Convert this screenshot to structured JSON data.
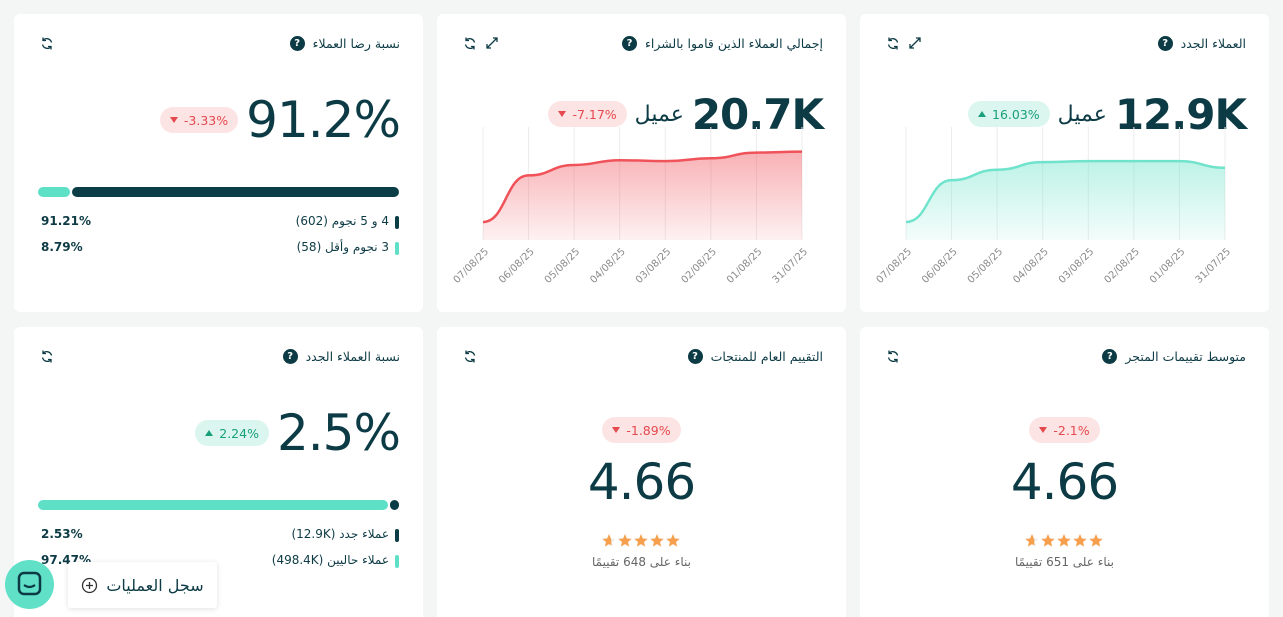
{
  "cards": [
    {
      "title": "العملاء الجدد",
      "value": "12.9K",
      "unit": "عميل",
      "change": {
        "label": "16.03%",
        "direction": "up"
      },
      "chart": {
        "type": "area",
        "x": [
          "07/08/25",
          "06/08/25",
          "05/08/25",
          "04/08/25",
          "03/08/25",
          "02/08/25",
          "01/08/25",
          "31/07/25"
        ],
        "values": [
          19,
          63,
          74,
          82,
          83,
          83,
          83,
          76
        ],
        "color": "#6fe3cb",
        "ylim": [
          0,
          100
        ]
      }
    },
    {
      "title": "إجمالي العملاء الذين قاموا بالشراء",
      "value": "20.7K",
      "unit": "عميل",
      "change": {
        "label": "-7.17%",
        "direction": "down"
      },
      "chart": {
        "type": "area",
        "x": [
          "07/08/25",
          "06/08/25",
          "05/08/25",
          "04/08/25",
          "03/08/25",
          "02/08/25",
          "01/08/25",
          "31/07/25"
        ],
        "values": [
          19,
          68,
          79,
          84,
          83,
          86,
          92,
          93
        ],
        "color": "#f0525a",
        "ylim": [
          0,
          100
        ]
      }
    },
    {
      "title": "نسبة رضا العملاء",
      "value": "91.2%",
      "change": {
        "label": "-3.33%",
        "direction": "down"
      },
      "breakdown": [
        {
          "label": "4 و 5 نجوم (602)",
          "value": 91.21,
          "value_label": "91.21%",
          "color": "#0b3d46"
        },
        {
          "label": "3 نجوم وأقل (58)",
          "value": 8.79,
          "value_label": "8.79%",
          "color": "#5ee0c6"
        }
      ]
    },
    {
      "title": "متوسط تقييمات المتجر",
      "rating": 4.66,
      "change": {
        "label": "-2.1%",
        "direction": "down"
      },
      "caption": "بناء على 651 تقييمًا"
    },
    {
      "title": "التقييم العام للمنتجات",
      "rating": 4.66,
      "change": {
        "label": "-1.89%",
        "direction": "down"
      },
      "caption": "بناء على 648 تقييمًا"
    },
    {
      "title": "نسبة العملاء الجدد",
      "value": "2.5%",
      "change": {
        "label": "2.24%",
        "direction": "up"
      },
      "breakdown": [
        {
          "label": "عملاء جدد (12.9K)",
          "value": 2.53,
          "value_label": "2.53%",
          "color": "#0b3d46"
        },
        {
          "label": "عملاء حاليين (498.4K)",
          "value": 97.47,
          "value_label": "97.47%",
          "color": "#5ee0c6"
        }
      ]
    }
  ],
  "activity_log": "سجل العمليات"
}
